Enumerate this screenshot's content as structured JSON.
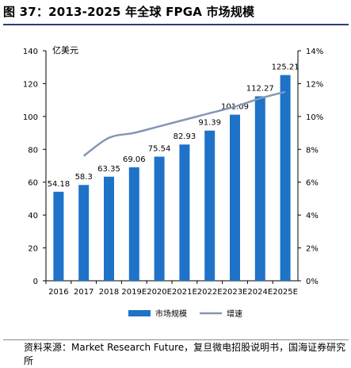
{
  "figure": {
    "title": "图 37：2013-2025 年全球 FPGA 市场规模",
    "source": "资料来源：Market Research Future，复旦微电招股说明书，国海证券研究所"
  },
  "chart_data": {
    "type": "bar",
    "categories": [
      "2016",
      "2017",
      "2018",
      "2019E",
      "2020E",
      "2021E",
      "2022E",
      "2023E",
      "2024E",
      "2025E"
    ],
    "unit_label": "亿美元",
    "series": [
      {
        "name": "市场规模",
        "type": "bar",
        "axis": "left",
        "color": "#1e73c8",
        "values": [
          54.18,
          58.3,
          63.35,
          69.06,
          75.54,
          82.93,
          91.39,
          101.09,
          112.27,
          125.21
        ],
        "labels": [
          "54.18",
          "58.3",
          "63.35",
          "69.06",
          "75.54",
          "82.93",
          "91.39",
          "101.09",
          "112.27",
          "125.21"
        ]
      },
      {
        "name": "增速",
        "type": "line",
        "axis": "right",
        "color": "#8397b4",
        "values": [
          null,
          7.6,
          8.7,
          9.0,
          9.4,
          9.8,
          10.2,
          10.6,
          11.1,
          11.5
        ]
      }
    ],
    "y_left": {
      "range": [
        0,
        140
      ],
      "ticks": [
        "0",
        "20",
        "40",
        "60",
        "80",
        "100",
        "120",
        "140"
      ]
    },
    "y_right": {
      "range": [
        0,
        14
      ],
      "ticks": [
        "0%",
        "2%",
        "4%",
        "6%",
        "8%",
        "10%",
        "12%",
        "14%"
      ]
    },
    "grid": false,
    "legend_position": "bottom"
  }
}
